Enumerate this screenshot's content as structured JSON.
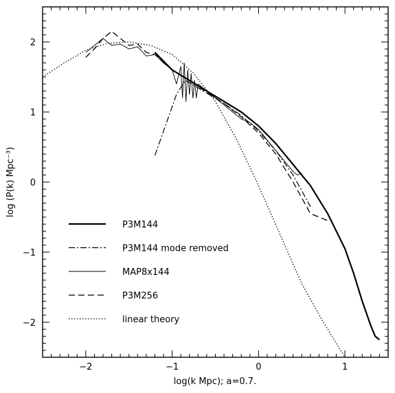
{
  "chart_data": {
    "type": "line",
    "title": "",
    "xlabel": "log(k Mpc); a=0.7.",
    "ylabel": "log (P(k)  Mpc⁻³)",
    "xlim": [
      -2.5,
      1.5
    ],
    "ylim": [
      -2.5,
      2.5
    ],
    "xticks": [
      -2,
      -1,
      0,
      1
    ],
    "xtick_labels": [
      "−2",
      "−1",
      "0",
      "1"
    ],
    "yticks": [
      -2,
      -1,
      0,
      1,
      2
    ],
    "ytick_labels": [
      "−2",
      "−1",
      "0",
      "1",
      "2"
    ],
    "grid": false,
    "legend_placement": "bottom-left",
    "series": [
      {
        "name": "P3M144",
        "style": "thick-solid",
        "x": [
          -1.2,
          -1.0,
          -0.8,
          -0.6,
          -0.4,
          -0.2,
          0.0,
          0.2,
          0.4,
          0.6,
          0.8,
          1.0,
          1.1,
          1.2,
          1.3,
          1.35,
          1.4
        ],
        "y": [
          1.85,
          1.6,
          1.45,
          1.3,
          1.15,
          1.0,
          0.8,
          0.55,
          0.25,
          -0.05,
          -0.45,
          -0.95,
          -1.3,
          -1.7,
          -2.05,
          -2.2,
          -2.25
        ]
      },
      {
        "name": "P3M144 mode removed",
        "style": "dash-dot",
        "x": [
          -1.2,
          -1.05,
          -0.95,
          -0.85,
          -0.8,
          -0.6,
          -0.4,
          -0.2,
          0.0,
          0.2,
          0.4,
          0.6
        ],
        "y": [
          0.38,
          0.9,
          1.25,
          1.45,
          1.42,
          1.27,
          1.12,
          0.95,
          0.73,
          0.45,
          0.1,
          -0.35
        ]
      },
      {
        "name": "MAP8x144",
        "style": "thin-solid",
        "x": [
          -2.0,
          -1.9,
          -1.8,
          -1.7,
          -1.6,
          -1.5,
          -1.4,
          -1.3,
          -1.2,
          -1.1,
          -1.0,
          -0.95,
          -0.9,
          -0.88,
          -0.86,
          -0.84,
          -0.82,
          -0.8,
          -0.78,
          -0.76,
          -0.74,
          -0.72,
          -0.7,
          -0.6,
          -0.5,
          -0.4,
          -0.3,
          -0.2,
          -0.1,
          0.0,
          0.1,
          0.2,
          0.3,
          0.4,
          0.45,
          0.5
        ],
        "y": [
          1.85,
          1.95,
          2.05,
          1.95,
          1.97,
          1.9,
          1.93,
          1.8,
          1.82,
          1.7,
          1.6,
          1.4,
          1.65,
          1.2,
          1.7,
          1.15,
          1.6,
          1.25,
          1.55,
          1.2,
          1.45,
          1.2,
          1.4,
          1.3,
          1.2,
          1.1,
          1.0,
          0.9,
          0.85,
          0.75,
          0.6,
          0.45,
          0.3,
          0.15,
          0.1,
          0.13
        ]
      },
      {
        "name": "P3M256",
        "style": "dashed",
        "x": [
          -2.0,
          -1.9,
          -1.8,
          -1.7,
          -1.6,
          -1.5,
          -1.4,
          -1.3,
          -1.2,
          -1.0,
          -0.8,
          -0.6,
          -0.4,
          -0.2,
          0.0,
          0.2,
          0.4,
          0.6,
          0.8
        ],
        "y": [
          1.78,
          1.9,
          2.05,
          2.15,
          2.05,
          1.95,
          1.97,
          1.85,
          1.82,
          1.6,
          1.45,
          1.28,
          1.12,
          0.93,
          0.7,
          0.4,
          0.0,
          -0.45,
          -0.55
        ]
      },
      {
        "name": "linear theory",
        "style": "dotted",
        "x": [
          -2.5,
          -2.25,
          -2.0,
          -1.75,
          -1.5,
          -1.25,
          -1.0,
          -0.75,
          -0.5,
          -0.25,
          0.0,
          0.25,
          0.5,
          0.75,
          1.0
        ],
        "y": [
          1.5,
          1.7,
          1.88,
          1.98,
          2.0,
          1.95,
          1.82,
          1.55,
          1.15,
          0.6,
          -0.05,
          -0.75,
          -1.45,
          -2.0,
          -2.5
        ]
      }
    ]
  }
}
